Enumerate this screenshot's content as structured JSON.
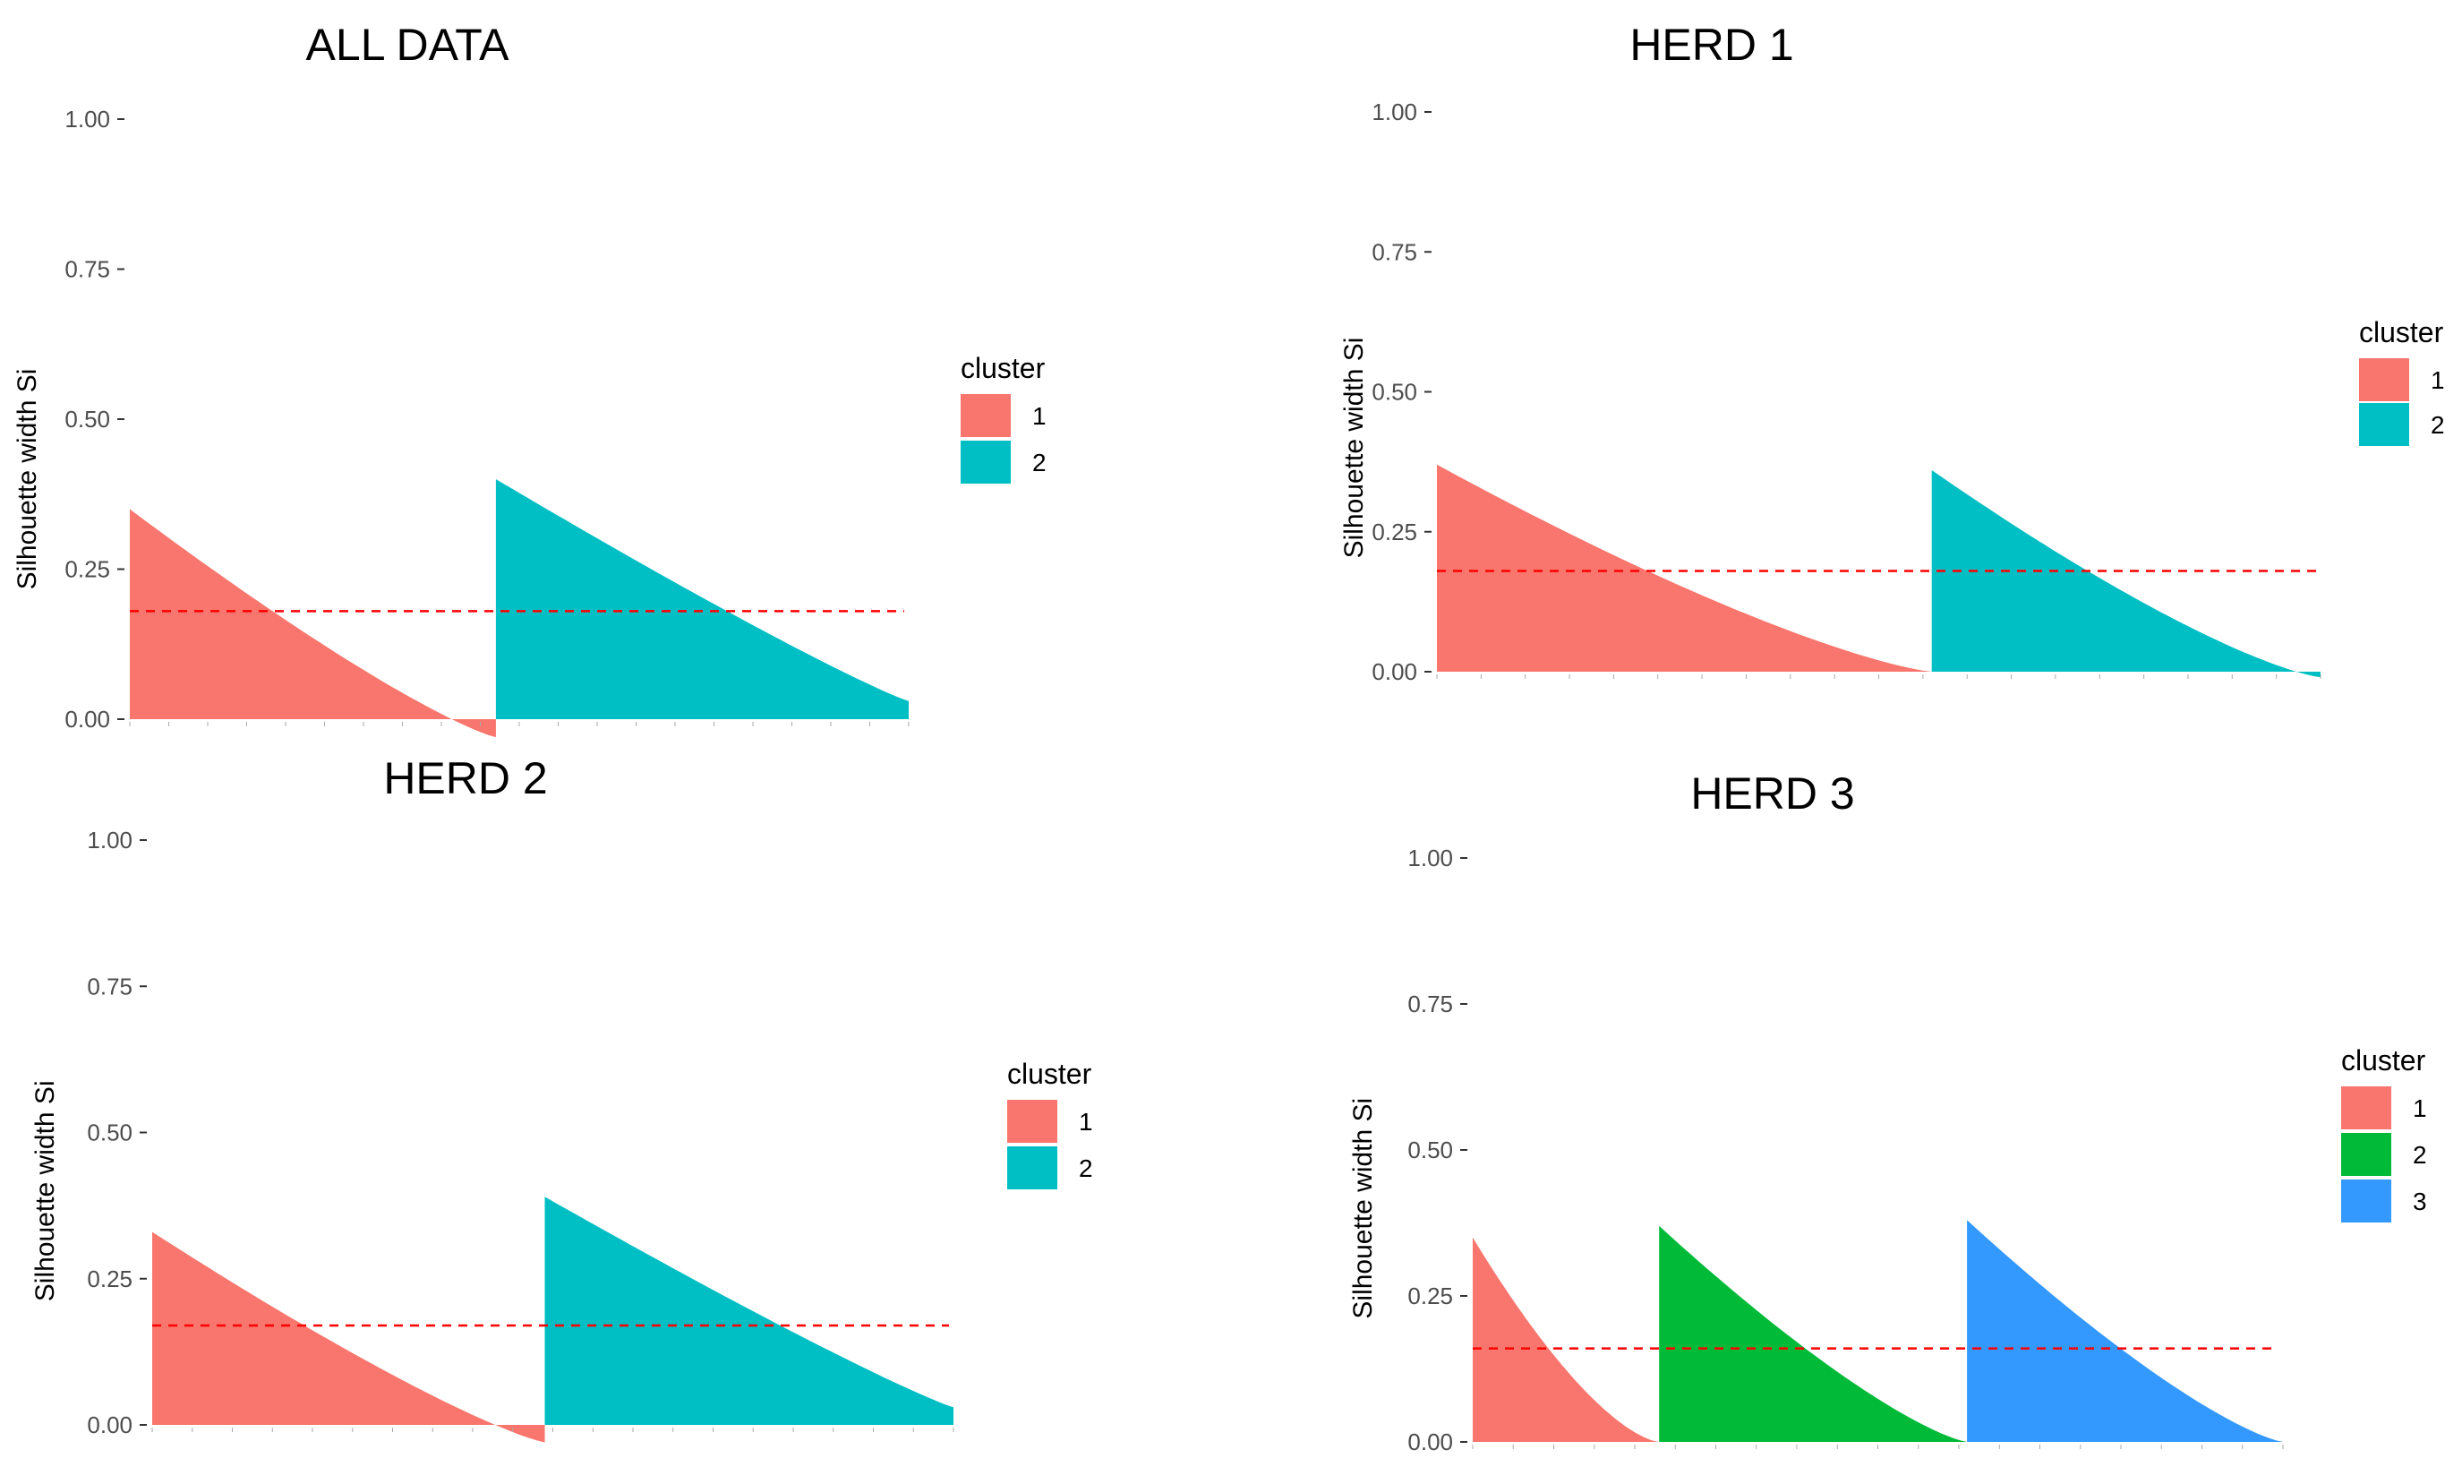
{
  "chart_data": [
    {
      "type": "area",
      "chart_kind": "silhouette",
      "title": "ALL DATA",
      "ylabel": "Silhouette width Si",
      "xlabel": "",
      "ylim": [
        0,
        1
      ],
      "yticks": [
        "0.00",
        "0.25",
        "0.50",
        "0.75",
        "1.00"
      ],
      "average_silhouette": 0.18,
      "legend": {
        "title": "cluster",
        "position": "right"
      },
      "series": [
        {
          "name": "1",
          "color": "#F8766D",
          "n_fraction": 0.47,
          "max": 0.35,
          "min": -0.03,
          "curve": 1.2
        },
        {
          "name": "2",
          "color": "#00BFC4",
          "n_fraction": 0.53,
          "max": 0.4,
          "min": 0.03,
          "curve": 1.1
        }
      ]
    },
    {
      "type": "area",
      "chart_kind": "silhouette",
      "title": "HERD 1",
      "ylabel": "Silhouette width Si",
      "xlabel": "",
      "ylim": [
        0,
        1
      ],
      "yticks": [
        "0.00",
        "0.25",
        "0.50",
        "0.75",
        "1.00"
      ],
      "average_silhouette": 0.18,
      "legend": {
        "title": "cluster",
        "position": "right"
      },
      "series": [
        {
          "name": "1",
          "color": "#F8766D",
          "n_fraction": 0.56,
          "max": 0.37,
          "min": 0.0,
          "curve": 1.3
        },
        {
          "name": "2",
          "color": "#00BFC4",
          "n_fraction": 0.44,
          "max": 0.36,
          "min": -0.01,
          "curve": 1.3
        }
      ]
    },
    {
      "type": "area",
      "chart_kind": "silhouette",
      "title": "HERD 2",
      "ylabel": "Silhouette width Si",
      "xlabel": "",
      "ylim": [
        0,
        1
      ],
      "yticks": [
        "0.00",
        "0.25",
        "0.50",
        "0.75",
        "1.00"
      ],
      "average_silhouette": 0.17,
      "legend": {
        "title": "cluster",
        "position": "right"
      },
      "series": [
        {
          "name": "1",
          "color": "#F8766D",
          "n_fraction": 0.49,
          "max": 0.33,
          "min": -0.03,
          "curve": 1.2
        },
        {
          "name": "2",
          "color": "#00BFC4",
          "n_fraction": 0.51,
          "max": 0.39,
          "min": 0.03,
          "curve": 1.1
        }
      ]
    },
    {
      "type": "area",
      "chart_kind": "silhouette",
      "title": "HERD 3",
      "ylabel": "Silhouette width Si",
      "xlabel": "",
      "ylim": [
        0,
        1
      ],
      "yticks": [
        "0.00",
        "0.25",
        "0.50",
        "0.75",
        "1.00"
      ],
      "average_silhouette": 0.16,
      "legend": {
        "title": "cluster",
        "position": "right"
      },
      "series": [
        {
          "name": "1",
          "color": "#F8766D",
          "n_fraction": 0.23,
          "max": 0.35,
          "min": 0.0,
          "curve": 1.5
        },
        {
          "name": "2",
          "color": "#00BA38",
          "n_fraction": 0.38,
          "max": 0.37,
          "min": 0.0,
          "curve": 1.3
        },
        {
          "name": "3",
          "color": "#3399FF",
          "n_fraction": 0.39,
          "max": 0.38,
          "min": 0.0,
          "curve": 1.3
        }
      ]
    }
  ]
}
